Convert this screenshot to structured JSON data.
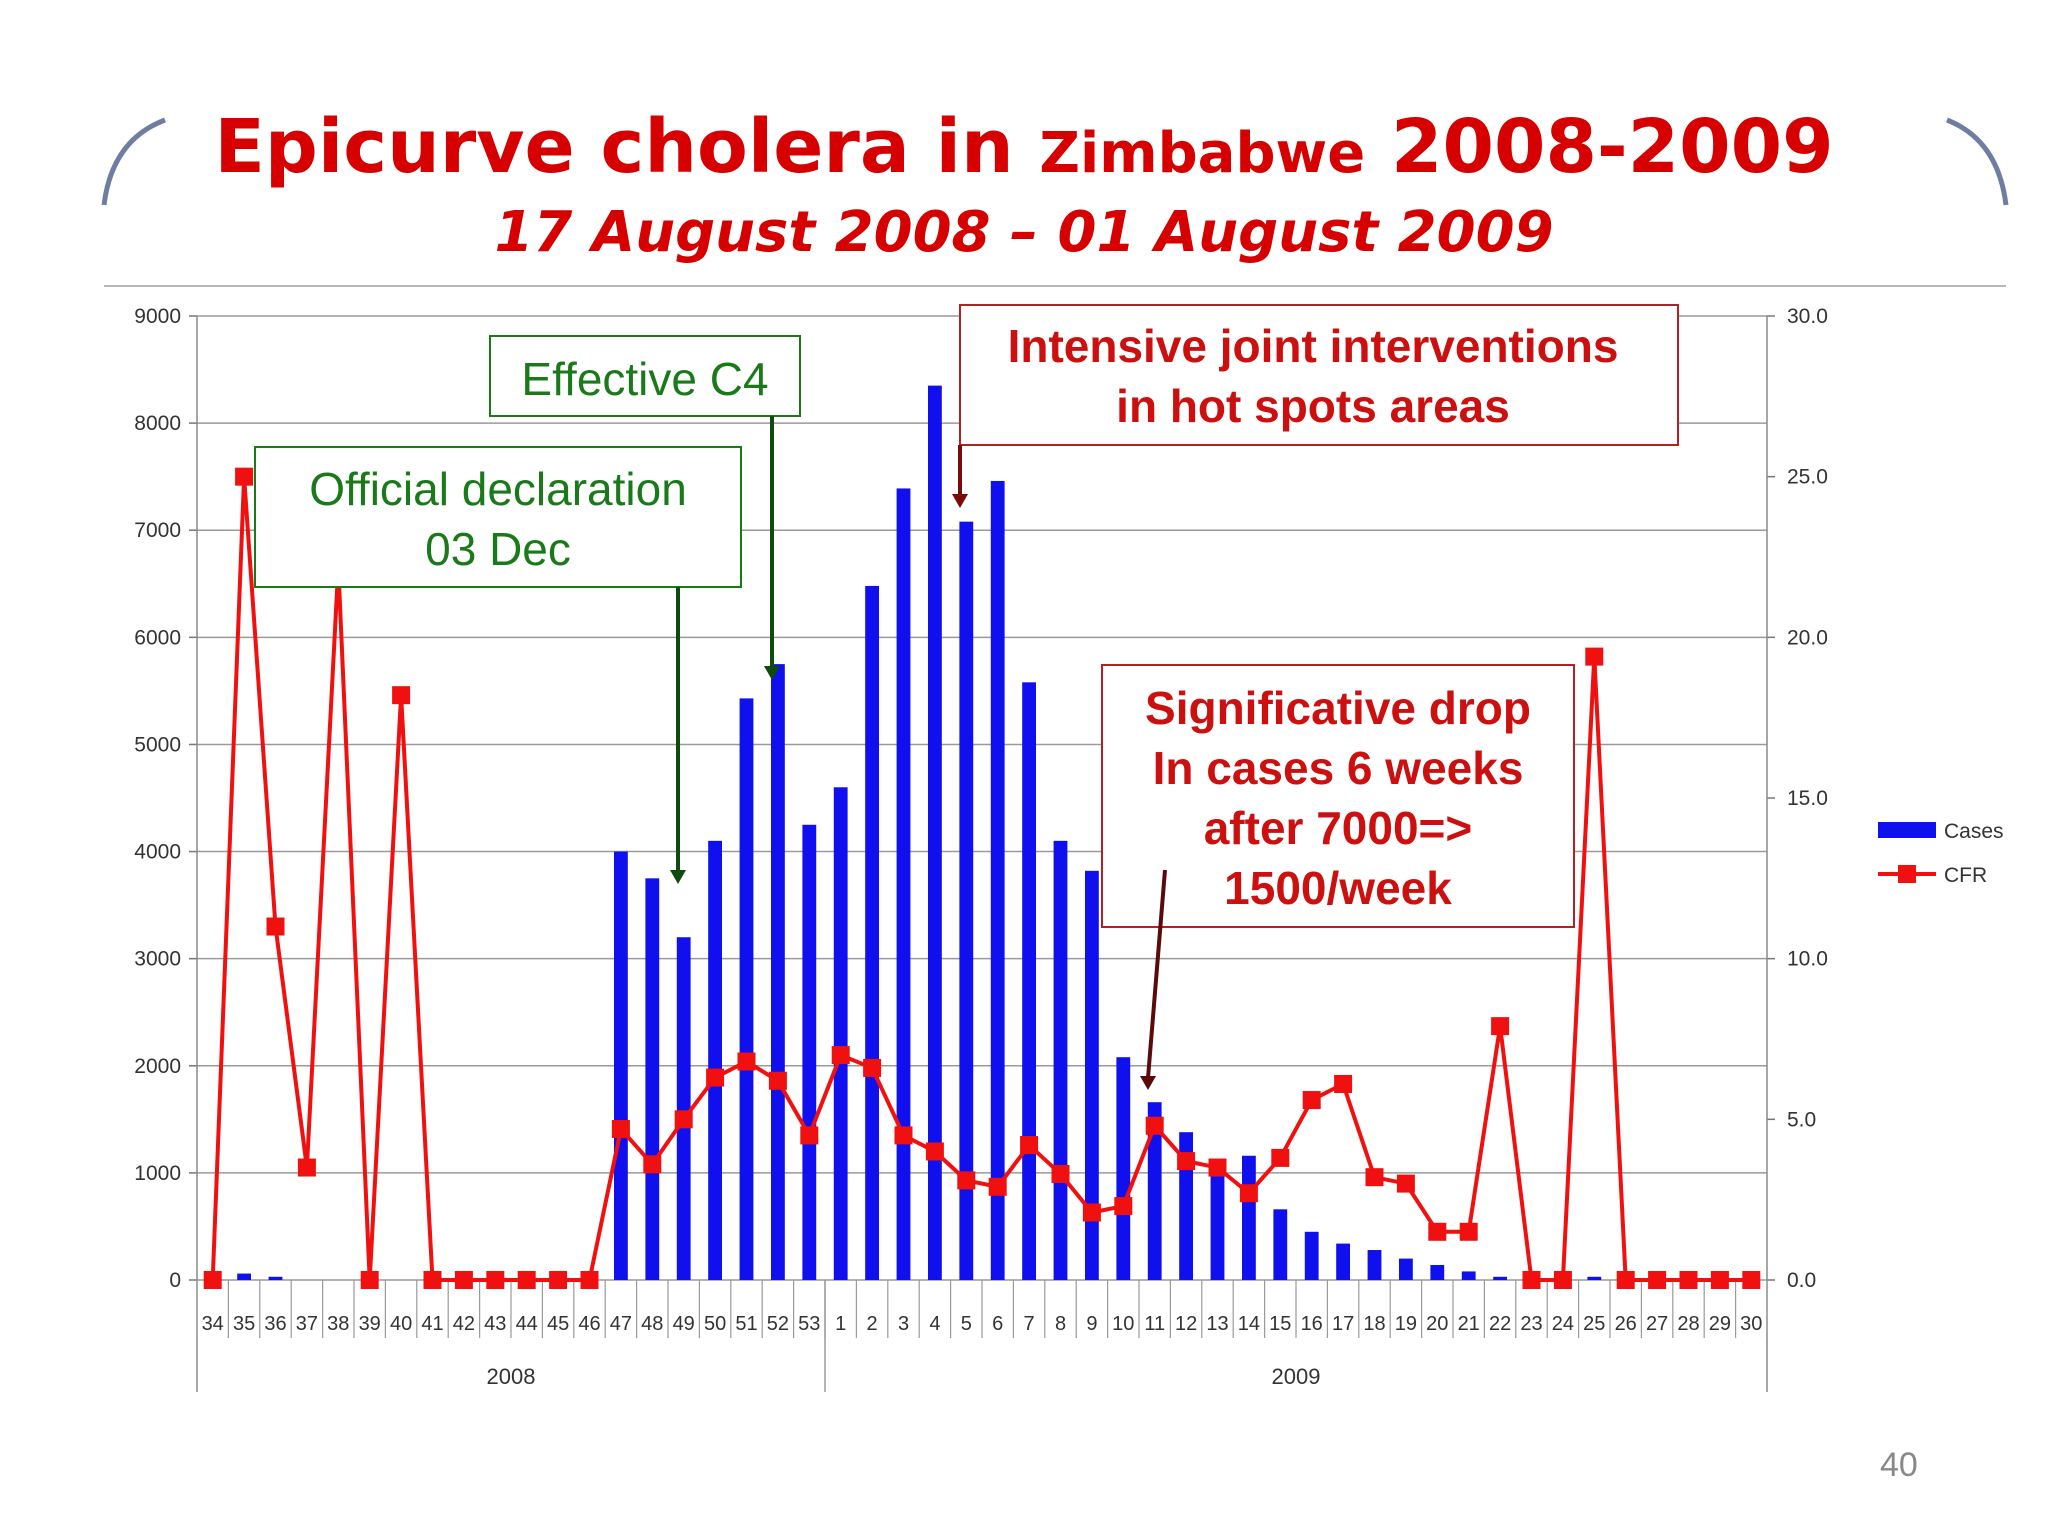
{
  "slide": {
    "title_main": "Epicurve cholera in ",
    "title_country": "Zimbabwe",
    "title_years": " 2008-2009",
    "subtitle": "17 August 2008 – 01 August 2009",
    "page_number": "40"
  },
  "colors": {
    "title": "#d60000",
    "cases_bar": "#1010ee",
    "cfr_line": "#f01010",
    "annotation_green": "#1a7a1a",
    "annotation_red": "#cc1010"
  },
  "annotations": {
    "official_declaration": [
      "Official declaration",
      "03 Dec"
    ],
    "effective_c4": [
      "Effective C4"
    ],
    "interventions": [
      "Intensive joint interventions",
      "in hot spots areas"
    ],
    "drop": [
      "Significative drop",
      "In cases 6 weeks",
      "after 7000=>",
      "1500/week"
    ]
  },
  "chart_data": {
    "type": "bar",
    "title": "Epicurve cholera in Zimbabwe 2008-2009",
    "categories": [
      "34",
      "35",
      "36",
      "37",
      "38",
      "39",
      "40",
      "41",
      "42",
      "43",
      "44",
      "45",
      "46",
      "47",
      "48",
      "49",
      "50",
      "51",
      "52",
      "53",
      "1",
      "2",
      "3",
      "4",
      "5",
      "6",
      "7",
      "8",
      "9",
      "10",
      "11",
      "12",
      "13",
      "14",
      "15",
      "16",
      "17",
      "18",
      "19",
      "20",
      "21",
      "22",
      "23",
      "24",
      "25",
      "26",
      "27",
      "28",
      "29",
      "30"
    ],
    "year_groups": [
      {
        "label": "2008",
        "start_index": 0,
        "end_index": 19
      },
      {
        "label": "2009",
        "start_index": 20,
        "end_index": 49
      }
    ],
    "series": [
      {
        "name": "Cases",
        "type": "bar",
        "axis": "left",
        "values": [
          0,
          60,
          30,
          0,
          0,
          0,
          0,
          0,
          0,
          0,
          0,
          0,
          0,
          4000,
          3750,
          3200,
          4100,
          5430,
          5750,
          4250,
          4600,
          6480,
          7390,
          8350,
          7080,
          7460,
          5580,
          4100,
          3820,
          2080,
          1660,
          1380,
          1050,
          1160,
          660,
          450,
          340,
          280,
          200,
          140,
          80,
          30,
          0,
          0,
          30,
          0,
          0,
          0,
          0,
          0
        ]
      },
      {
        "name": "CFR",
        "type": "line",
        "axis": "right",
        "values": [
          0,
          25,
          11,
          3.5,
          22.2,
          0,
          18.2,
          0,
          0,
          0,
          0,
          0,
          0,
          4.7,
          3.6,
          5,
          6.3,
          6.8,
          6.2,
          4.5,
          7,
          6.6,
          4.5,
          4,
          3.1,
          2.9,
          4.2,
          3.3,
          2.1,
          2.3,
          4.8,
          3.7,
          3.5,
          2.7,
          3.8,
          5.6,
          6.1,
          3.2,
          3,
          1.5,
          1.5,
          7.9,
          0,
          0,
          19.4,
          0,
          0,
          0,
          0,
          0
        ]
      }
    ],
    "y_left": {
      "min": 0,
      "max": 9000,
      "ticks": [
        "0",
        "1000",
        "2000",
        "3000",
        "4000",
        "5000",
        "6000",
        "7000",
        "8000",
        "9000"
      ]
    },
    "y_right": {
      "min": 0,
      "max": 30,
      "ticks": [
        "0.0",
        "5.0",
        "10.0",
        "15.0",
        "20.0",
        "25.0",
        "30.0"
      ]
    },
    "legend": {
      "position": "right",
      "entries": [
        "Cases",
        "CFR"
      ]
    },
    "grid": true
  }
}
